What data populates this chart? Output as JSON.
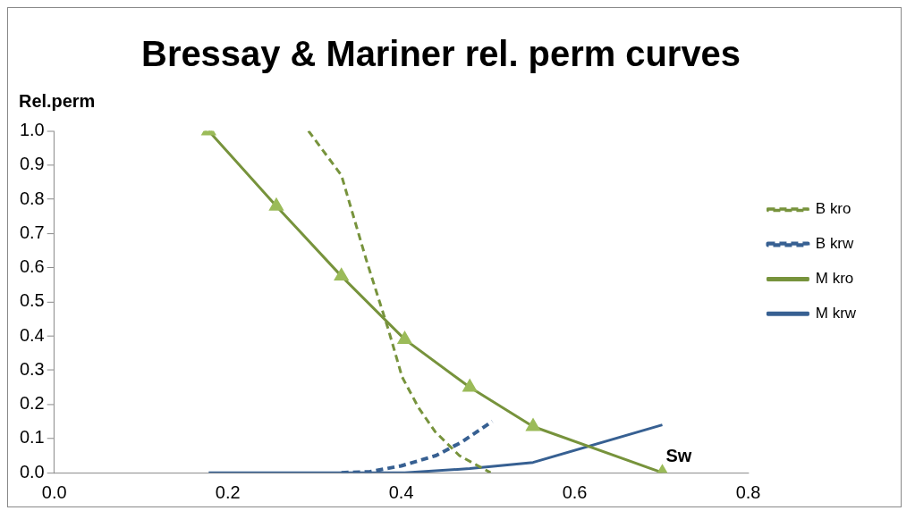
{
  "chart_data": {
    "type": "line",
    "title": "Bressay & Mariner rel. perm curves",
    "xlabel": "Sw",
    "ylabel": "Rel.perm",
    "xlim": [
      0,
      0.8
    ],
    "ylim": [
      0,
      1
    ],
    "xticks": [
      {
        "value": 0,
        "label": "0.0"
      },
      {
        "value": 0.2,
        "label": "0.2"
      },
      {
        "value": 0.4,
        "label": "0.4"
      },
      {
        "value": 0.6,
        "label": "0.6"
      },
      {
        "value": 0.8,
        "label": "0.8"
      }
    ],
    "yticks": [
      {
        "value": 0,
        "label": "0.0"
      },
      {
        "value": 0.1,
        "label": "0.1"
      },
      {
        "value": 0.2,
        "label": "0.2"
      },
      {
        "value": 0.3,
        "label": "0.3"
      },
      {
        "value": 0.4,
        "label": "0.4"
      },
      {
        "value": 0.5,
        "label": "0.5"
      },
      {
        "value": 0.6,
        "label": "0.6"
      },
      {
        "value": 0.7,
        "label": "0.7"
      },
      {
        "value": 0.8,
        "label": "0.8"
      },
      {
        "value": 0.9,
        "label": "0.9"
      },
      {
        "value": 1.0,
        "label": "1.0"
      }
    ],
    "grid": false,
    "legend": "right",
    "series": [
      {
        "name": "B kro",
        "color": "#77933c",
        "line_style": "dashed",
        "marker": "none",
        "x": [
          0.293,
          0.331,
          0.36,
          0.385,
          0.401,
          0.42,
          0.439,
          0.467,
          0.503
        ],
        "values": [
          1.0,
          0.87,
          0.62,
          0.42,
          0.28,
          0.19,
          0.12,
          0.05,
          0.0
        ]
      },
      {
        "name": "B krw",
        "color": "#376092",
        "line_style": "dashed",
        "marker": "none",
        "x": [
          0.331,
          0.364,
          0.4,
          0.44,
          0.47,
          0.505
        ],
        "values": [
          0.0,
          0.003,
          0.02,
          0.05,
          0.09,
          0.15
        ]
      },
      {
        "name": "M kro",
        "color": "#77933c",
        "line_style": "solid",
        "marker": "triangle",
        "x": [
          0.178,
          0.256,
          0.331,
          0.404,
          0.479,
          0.552,
          0.701
        ],
        "values": [
          1.0,
          0.78,
          0.575,
          0.39,
          0.25,
          0.135,
          0.0
        ]
      },
      {
        "name": "M krw",
        "color": "#376092",
        "line_style": "solid",
        "marker": "none",
        "x": [
          0.178,
          0.256,
          0.331,
          0.404,
          0.479,
          0.552,
          0.701
        ],
        "values": [
          0.0,
          0.0,
          0.0,
          0.0,
          0.012,
          0.03,
          0.14
        ]
      }
    ]
  }
}
